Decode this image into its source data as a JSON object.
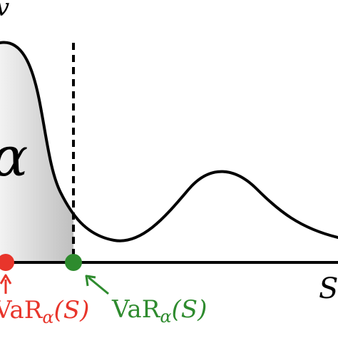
{
  "diagram": {
    "top_left_fragment": "v",
    "alpha_region_label": "α",
    "x_axis_label": "S",
    "left_marker": {
      "label_prefix": "VaR",
      "label_subscript": "α",
      "label_suffix": "(S)",
      "color": "#e8352b"
    },
    "right_marker": {
      "label_prefix": "VaR",
      "label_subscript": "α",
      "label_suffix": "(S)",
      "color": "#2e8b2e"
    },
    "colors": {
      "curve": "#000000",
      "axis": "#000000",
      "shade_light": "#f2f2f2",
      "shade_dark": "#bfbfbf"
    }
  }
}
